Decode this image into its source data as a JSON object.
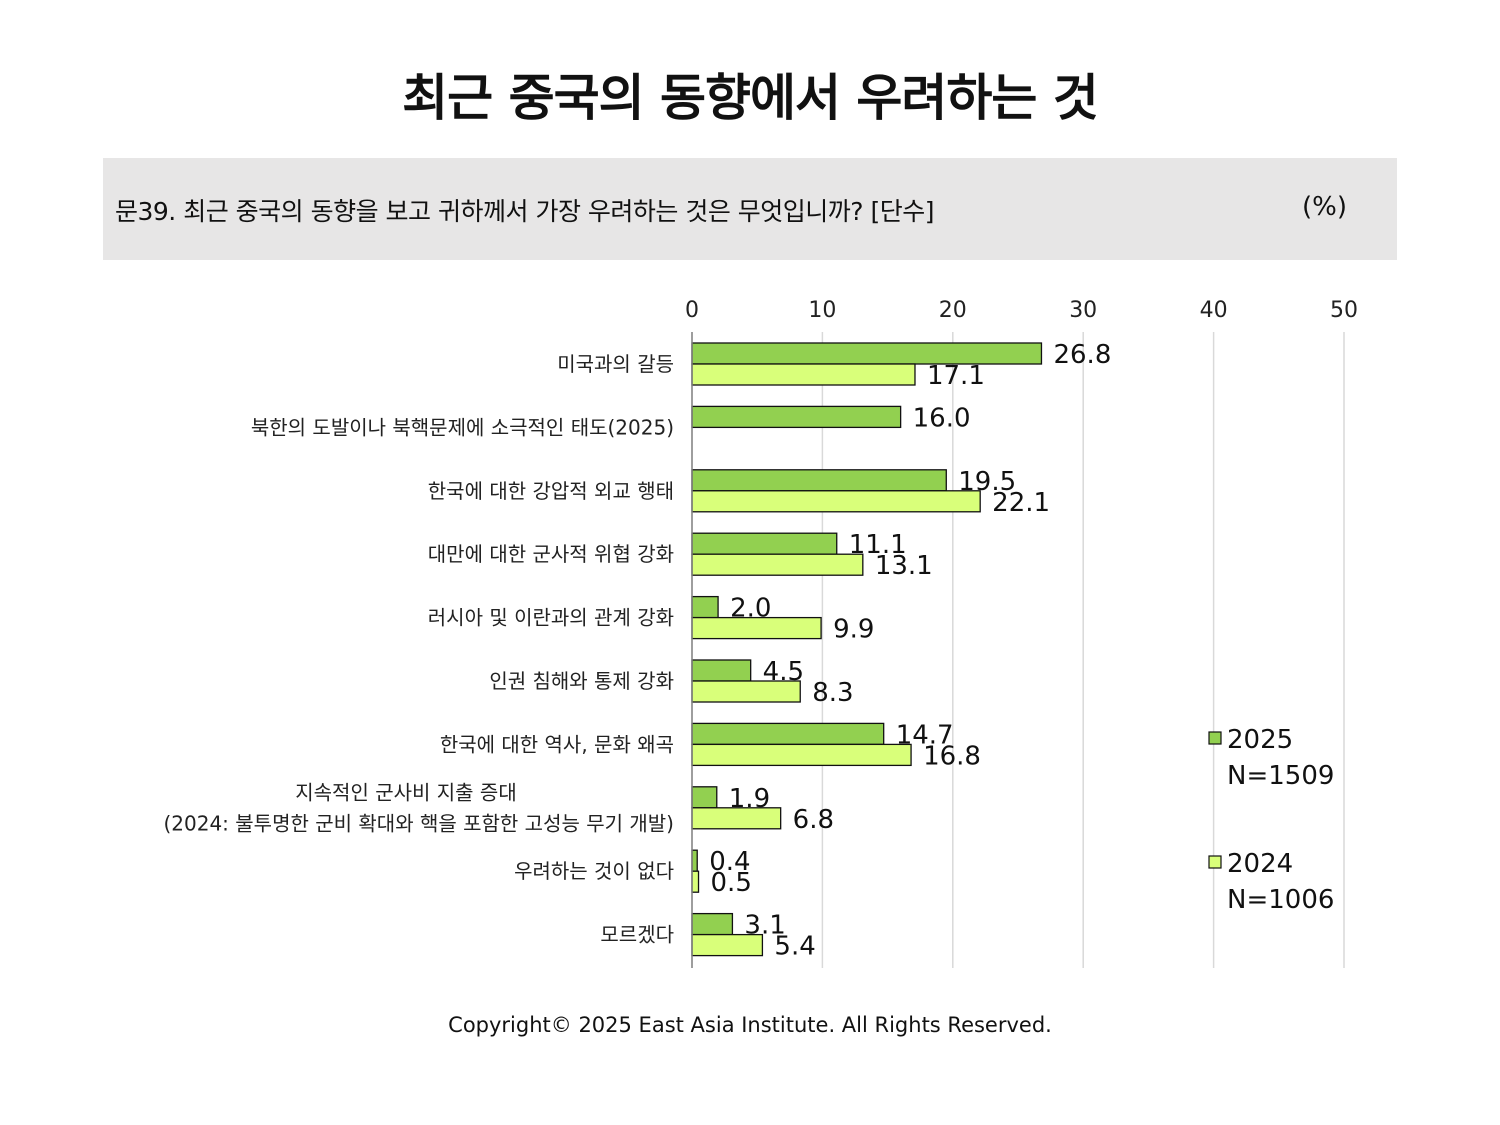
{
  "title": "최근 중국의 동향에서 우려하는 것",
  "question": "문39. 최근 중국의 동향을 보고 귀하께서 가장 우려하는 것은 무엇입니까? [단수]",
  "unit": "(%)",
  "copyright": "Copyright© 2025 East Asia Institute. All Rights Reserved.",
  "colors": {
    "s2025": "#92d050",
    "s2024": "#d9ff7a",
    "grid": "#d9d9d9",
    "panel": "#e7e6e6"
  },
  "chart_data": {
    "type": "bar",
    "orientation": "horizontal",
    "xlim": [
      0,
      50
    ],
    "ticks": [
      0,
      10,
      20,
      30,
      40,
      50
    ],
    "tick_labels": [
      "0",
      "10",
      "20",
      "30",
      "40",
      "50"
    ],
    "grid": true,
    "legend_position": "right",
    "categories": [
      [
        "미국과의 갈등"
      ],
      [
        "북한의 도발이나 북핵문제에 소극적인 태도(2025)"
      ],
      [
        "한국에 대한 강압적 외교 행태"
      ],
      [
        "대만에 대한 군사적 위협 강화"
      ],
      [
        "러시아 및 이란과의 관계 강화"
      ],
      [
        "인권 침해와 통제 강화"
      ],
      [
        "한국에 대한 역사, 문화 왜곡"
      ],
      [
        "지속적인 군사비 지출 증대",
        "(2024: 불투명한 군비 확대와 핵을 포함한 고성능 무기 개발)"
      ],
      [
        "우려하는 것이 없다"
      ],
      [
        "모르겠다"
      ]
    ],
    "series": [
      {
        "name": "2025",
        "n_label": "N=1509",
        "color": "#92d050",
        "values": [
          26.8,
          16.0,
          19.5,
          11.1,
          2.0,
          4.5,
          14.7,
          1.9,
          0.4,
          3.1
        ],
        "labels": [
          "26.8",
          "16.0",
          "19.5",
          "11.1",
          "2.0",
          "4.5",
          "14.7",
          "1.9",
          "0.4",
          "3.1"
        ]
      },
      {
        "name": "2024",
        "n_label": "N=1006",
        "color": "#d9ff7a",
        "values": [
          17.1,
          null,
          22.1,
          13.1,
          9.9,
          8.3,
          16.8,
          6.8,
          0.5,
          5.4
        ],
        "labels": [
          "17.1",
          "",
          "22.1",
          "13.1",
          "9.9",
          "8.3",
          "16.8",
          "6.8",
          "0.5",
          "5.4"
        ]
      }
    ]
  }
}
